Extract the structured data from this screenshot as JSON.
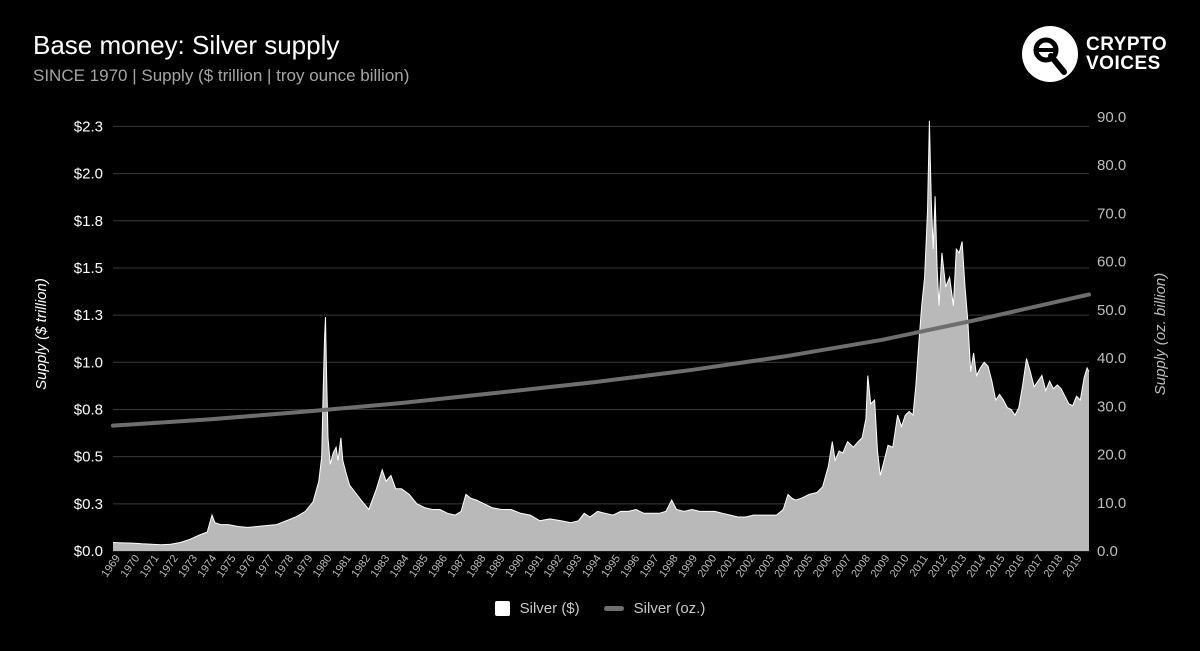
{
  "header": {
    "title": "Base money: Silver supply",
    "subtitle": "SINCE 1970 | Supply ($ trillion | troy ounce billion)"
  },
  "logo": {
    "line1": "CRYPTO",
    "line2": "VOICES",
    "icon": "crypto-voices-logo-icon"
  },
  "colors": {
    "background": "#000000",
    "area_fill": "#b9b9b9",
    "area_stroke": "#ffffff",
    "line": "#6e6e6e",
    "grid": "#3a3a3a"
  },
  "chart_data": {
    "type": "area",
    "xlabel": "",
    "ylabel": "Supply ($ trillion)",
    "ylabel_right": "Supply (oz. billion)",
    "x_range": [
      1969,
      2019.75
    ],
    "left_axis": {
      "range": [
        0,
        2.3
      ],
      "ticks": [
        0,
        0.25,
        0.5,
        0.75,
        1.0,
        1.25,
        1.5,
        1.75,
        2.0,
        2.25
      ],
      "tick_labels": [
        "$0.0",
        "$0.3",
        "$0.5",
        "$0.8",
        "$1.0",
        "$1.3",
        "$1.5",
        "$1.8",
        "$2.0",
        "$2.3"
      ]
    },
    "right_axis": {
      "range": [
        0,
        90
      ],
      "ticks": [
        0,
        10,
        20,
        30,
        40,
        50,
        60,
        70,
        80,
        90
      ],
      "tick_labels": [
        "0.0",
        "10.0",
        "20.0",
        "30.0",
        "40.0",
        "50.0",
        "60.0",
        "70.0",
        "80.0",
        "90.0"
      ]
    },
    "x_tick_labels": [
      "1969",
      "1970",
      "1971",
      "1972",
      "1973",
      "1974",
      "1975",
      "1976",
      "1977",
      "1978",
      "1979",
      "1980",
      "1981",
      "1982",
      "1983",
      "1984",
      "1985",
      "1986",
      "1987",
      "1988",
      "1989",
      "1990",
      "1991",
      "1992",
      "1993",
      "1994",
      "1995",
      "1996",
      "1997",
      "1998",
      "1999",
      "2000",
      "2001",
      "2002",
      "2003",
      "2004",
      "2005",
      "2006",
      "2007",
      "2008",
      "2009",
      "2010",
      "2011",
      "2012",
      "2013",
      "2014",
      "2015",
      "2016",
      "2017",
      "2018",
      "2019"
    ],
    "grid": true,
    "legend_position": "bottom-center",
    "series": [
      {
        "name": "Silver ($)",
        "axis": "left",
        "style": "area",
        "points": [
          [
            1969.0,
            0.045
          ],
          [
            1969.5,
            0.043
          ],
          [
            1970.0,
            0.042
          ],
          [
            1970.5,
            0.038
          ],
          [
            1971.0,
            0.036
          ],
          [
            1971.5,
            0.033
          ],
          [
            1972.0,
            0.036
          ],
          [
            1972.5,
            0.045
          ],
          [
            1973.0,
            0.062
          ],
          [
            1973.5,
            0.085
          ],
          [
            1973.9,
            0.1
          ],
          [
            1974.15,
            0.19
          ],
          [
            1974.3,
            0.15
          ],
          [
            1974.6,
            0.14
          ],
          [
            1975.0,
            0.14
          ],
          [
            1975.5,
            0.13
          ],
          [
            1976.0,
            0.125
          ],
          [
            1976.5,
            0.13
          ],
          [
            1977.0,
            0.135
          ],
          [
            1977.5,
            0.14
          ],
          [
            1978.0,
            0.16
          ],
          [
            1978.5,
            0.18
          ],
          [
            1979.0,
            0.21
          ],
          [
            1979.4,
            0.26
          ],
          [
            1979.7,
            0.37
          ],
          [
            1979.85,
            0.5
          ],
          [
            1979.93,
            0.85
          ],
          [
            1980.0,
            1.12
          ],
          [
            1980.05,
            1.24
          ],
          [
            1980.1,
            0.95
          ],
          [
            1980.18,
            0.6
          ],
          [
            1980.3,
            0.46
          ],
          [
            1980.45,
            0.52
          ],
          [
            1980.6,
            0.55
          ],
          [
            1980.7,
            0.48
          ],
          [
            1980.85,
            0.6
          ],
          [
            1980.95,
            0.48
          ],
          [
            1981.1,
            0.42
          ],
          [
            1981.3,
            0.35
          ],
          [
            1981.6,
            0.31
          ],
          [
            1981.9,
            0.27
          ],
          [
            1982.3,
            0.22
          ],
          [
            1982.7,
            0.33
          ],
          [
            1983.0,
            0.43
          ],
          [
            1983.2,
            0.37
          ],
          [
            1983.45,
            0.4
          ],
          [
            1983.7,
            0.33
          ],
          [
            1984.0,
            0.33
          ],
          [
            1984.4,
            0.3
          ],
          [
            1984.8,
            0.25
          ],
          [
            1985.2,
            0.23
          ],
          [
            1985.6,
            0.22
          ],
          [
            1986.0,
            0.22
          ],
          [
            1986.4,
            0.2
          ],
          [
            1986.8,
            0.19
          ],
          [
            1987.1,
            0.21
          ],
          [
            1987.35,
            0.3
          ],
          [
            1987.6,
            0.28
          ],
          [
            1987.9,
            0.27
          ],
          [
            1988.3,
            0.25
          ],
          [
            1988.7,
            0.23
          ],
          [
            1989.2,
            0.22
          ],
          [
            1989.7,
            0.22
          ],
          [
            1990.2,
            0.2
          ],
          [
            1990.7,
            0.19
          ],
          [
            1991.2,
            0.16
          ],
          [
            1991.7,
            0.17
          ],
          [
            1992.3,
            0.16
          ],
          [
            1992.8,
            0.15
          ],
          [
            1993.2,
            0.16
          ],
          [
            1993.5,
            0.2
          ],
          [
            1993.8,
            0.18
          ],
          [
            1994.2,
            0.21
          ],
          [
            1994.6,
            0.2
          ],
          [
            1995.0,
            0.19
          ],
          [
            1995.4,
            0.21
          ],
          [
            1995.8,
            0.21
          ],
          [
            1996.2,
            0.22
          ],
          [
            1996.6,
            0.2
          ],
          [
            1997.0,
            0.2
          ],
          [
            1997.4,
            0.2
          ],
          [
            1997.75,
            0.21
          ],
          [
            1998.05,
            0.27
          ],
          [
            1998.3,
            0.22
          ],
          [
            1998.7,
            0.21
          ],
          [
            1999.1,
            0.22
          ],
          [
            1999.5,
            0.21
          ],
          [
            1999.9,
            0.21
          ],
          [
            2000.3,
            0.21
          ],
          [
            2000.7,
            0.2
          ],
          [
            2001.1,
            0.19
          ],
          [
            2001.5,
            0.18
          ],
          [
            2001.9,
            0.18
          ],
          [
            2002.3,
            0.19
          ],
          [
            2002.7,
            0.19
          ],
          [
            2003.1,
            0.19
          ],
          [
            2003.5,
            0.19
          ],
          [
            2003.85,
            0.22
          ],
          [
            2004.1,
            0.3
          ],
          [
            2004.3,
            0.28
          ],
          [
            2004.5,
            0.27
          ],
          [
            2004.8,
            0.28
          ],
          [
            2005.2,
            0.3
          ],
          [
            2005.6,
            0.31
          ],
          [
            2005.9,
            0.34
          ],
          [
            2006.2,
            0.45
          ],
          [
            2006.4,
            0.58
          ],
          [
            2006.55,
            0.48
          ],
          [
            2006.75,
            0.53
          ],
          [
            2006.95,
            0.52
          ],
          [
            2007.2,
            0.58
          ],
          [
            2007.5,
            0.55
          ],
          [
            2007.75,
            0.58
          ],
          [
            2007.95,
            0.6
          ],
          [
            2008.15,
            0.7
          ],
          [
            2008.25,
            0.93
          ],
          [
            2008.4,
            0.78
          ],
          [
            2008.6,
            0.8
          ],
          [
            2008.75,
            0.53
          ],
          [
            2008.9,
            0.4
          ],
          [
            2009.1,
            0.48
          ],
          [
            2009.3,
            0.56
          ],
          [
            2009.55,
            0.55
          ],
          [
            2009.8,
            0.72
          ],
          [
            2010.0,
            0.66
          ],
          [
            2010.2,
            0.72
          ],
          [
            2010.4,
            0.74
          ],
          [
            2010.6,
            0.72
          ],
          [
            2010.75,
            0.88
          ],
          [
            2010.9,
            1.1
          ],
          [
            2011.05,
            1.3
          ],
          [
            2011.2,
            1.45
          ],
          [
            2011.35,
            1.8
          ],
          [
            2011.45,
            2.28
          ],
          [
            2011.55,
            1.85
          ],
          [
            2011.65,
            1.6
          ],
          [
            2011.75,
            1.88
          ],
          [
            2011.85,
            1.5
          ],
          [
            2011.95,
            1.3
          ],
          [
            2012.1,
            1.58
          ],
          [
            2012.3,
            1.4
          ],
          [
            2012.5,
            1.45
          ],
          [
            2012.7,
            1.3
          ],
          [
            2012.85,
            1.6
          ],
          [
            2013.0,
            1.58
          ],
          [
            2013.15,
            1.64
          ],
          [
            2013.3,
            1.4
          ],
          [
            2013.45,
            1.22
          ],
          [
            2013.6,
            0.95
          ],
          [
            2013.75,
            1.05
          ],
          [
            2013.9,
            0.93
          ],
          [
            2014.1,
            0.97
          ],
          [
            2014.3,
            1.0
          ],
          [
            2014.5,
            0.98
          ],
          [
            2014.7,
            0.9
          ],
          [
            2014.9,
            0.8
          ],
          [
            2015.1,
            0.83
          ],
          [
            2015.3,
            0.8
          ],
          [
            2015.5,
            0.76
          ],
          [
            2015.7,
            0.75
          ],
          [
            2015.9,
            0.72
          ],
          [
            2016.1,
            0.76
          ],
          [
            2016.3,
            0.88
          ],
          [
            2016.5,
            1.02
          ],
          [
            2016.7,
            0.95
          ],
          [
            2016.9,
            0.87
          ],
          [
            2017.1,
            0.9
          ],
          [
            2017.3,
            0.93
          ],
          [
            2017.5,
            0.85
          ],
          [
            2017.7,
            0.9
          ],
          [
            2017.9,
            0.86
          ],
          [
            2018.1,
            0.88
          ],
          [
            2018.3,
            0.86
          ],
          [
            2018.5,
            0.82
          ],
          [
            2018.7,
            0.78
          ],
          [
            2018.9,
            0.77
          ],
          [
            2019.1,
            0.82
          ],
          [
            2019.3,
            0.8
          ],
          [
            2019.5,
            0.92
          ],
          [
            2019.65,
            0.97
          ],
          [
            2019.75,
            0.95
          ]
        ]
      },
      {
        "name": "Silver (oz.)",
        "axis": "right",
        "style": "line",
        "points": [
          [
            1969,
            26.0
          ],
          [
            1974,
            27.3
          ],
          [
            1979,
            28.9
          ],
          [
            1984,
            30.7
          ],
          [
            1989,
            32.8
          ],
          [
            1994,
            35.0
          ],
          [
            1999,
            37.5
          ],
          [
            2004,
            40.4
          ],
          [
            2009,
            43.8
          ],
          [
            2014,
            48.0
          ],
          [
            2019.75,
            53.2
          ]
        ]
      }
    ]
  },
  "legend": {
    "items": [
      {
        "label": "Silver ($)"
      },
      {
        "label": "Silver (oz.)"
      }
    ]
  }
}
